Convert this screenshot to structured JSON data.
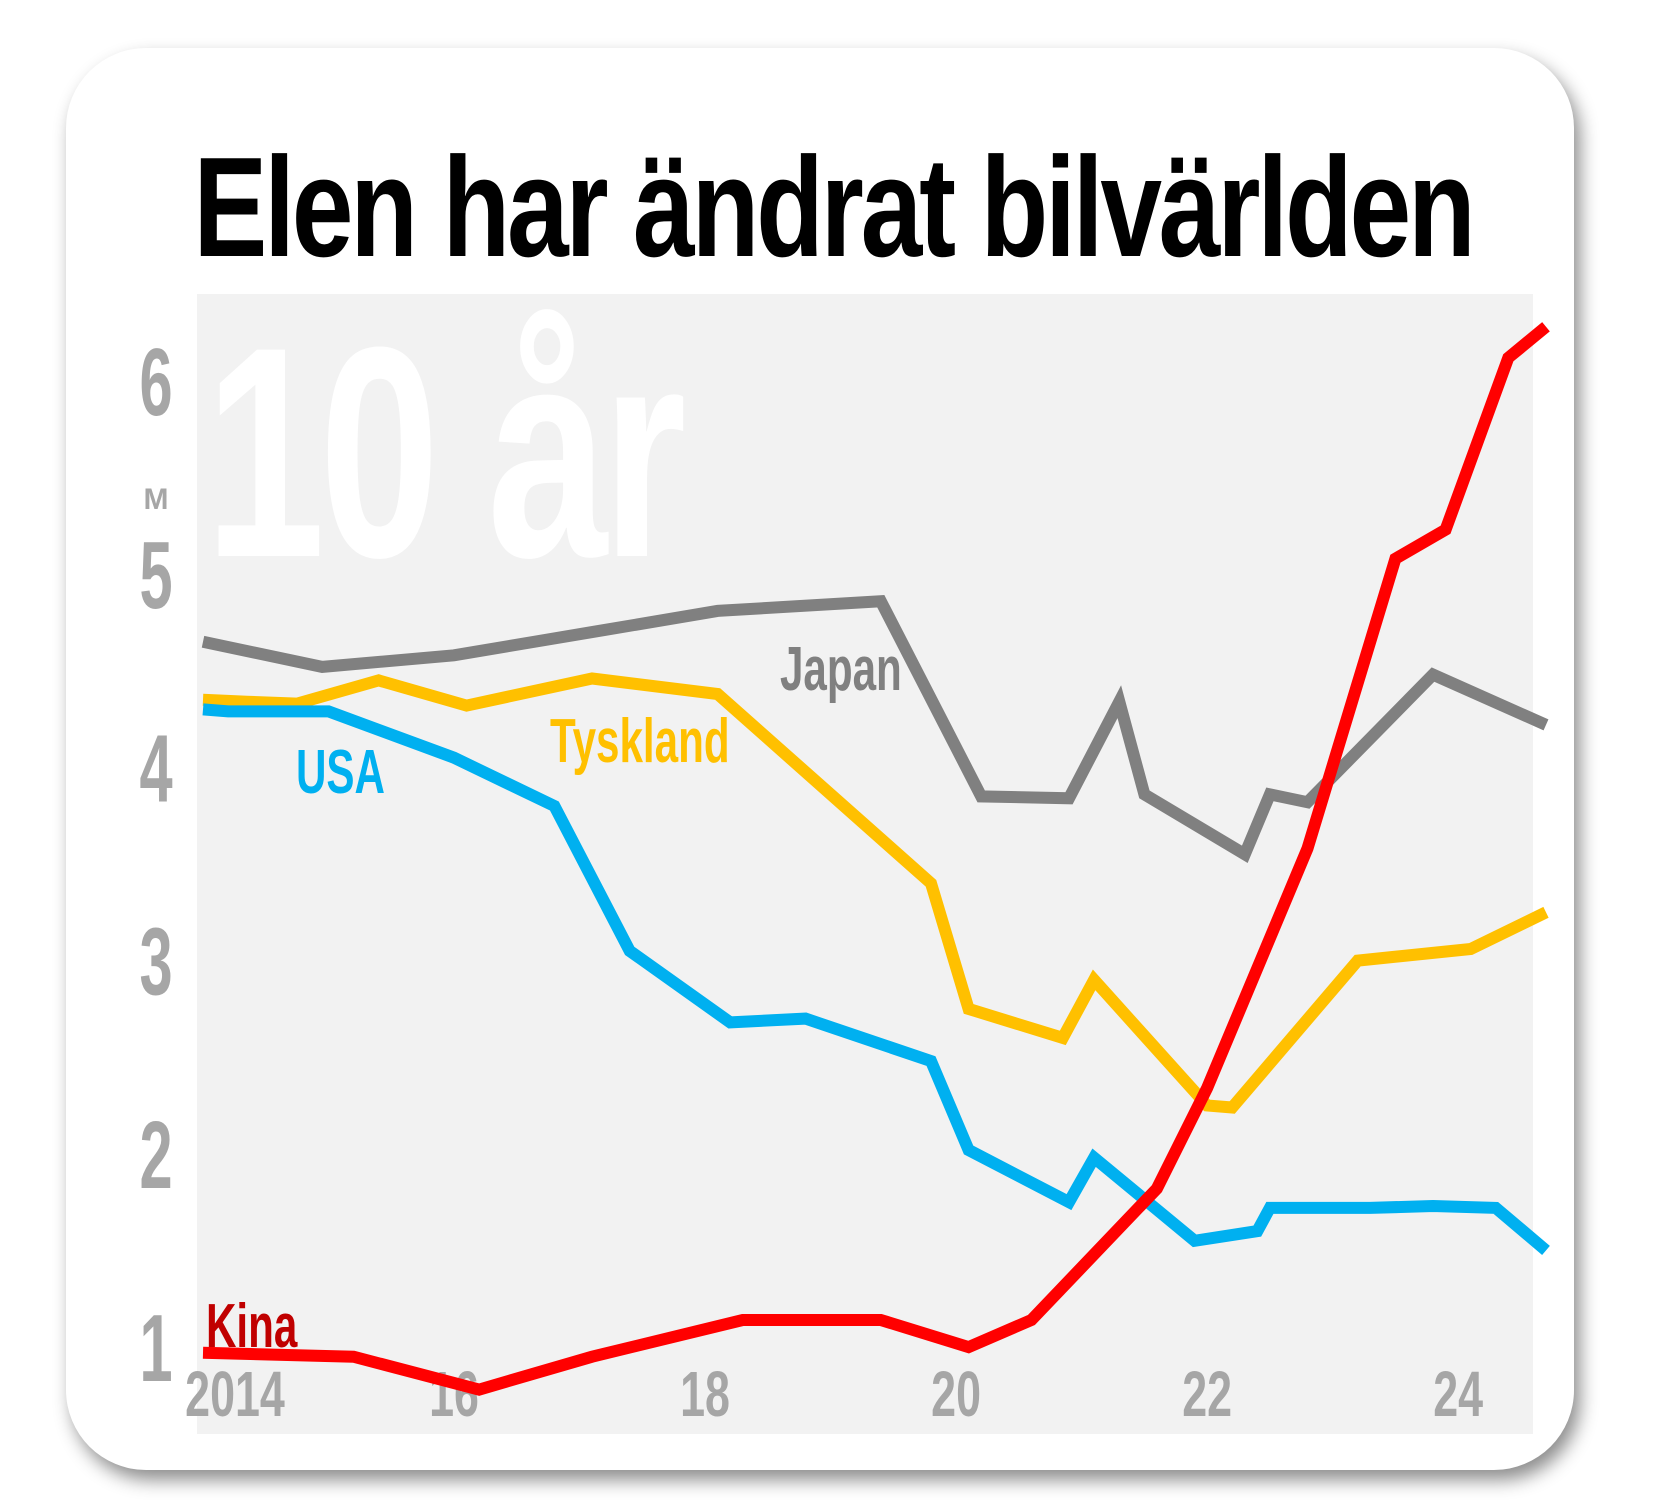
{
  "chart_data": {
    "type": "line",
    "title": "Elen har ändrat bilvärlden",
    "watermark": "10 år",
    "ylabel": "M",
    "yticks": [
      1,
      2,
      3,
      4,
      5,
      6
    ],
    "ylim": [
      0.55,
      6.45
    ],
    "xlim": [
      2014,
      2024.7
    ],
    "xticks": [
      {
        "value": 2014,
        "label": "2014"
      },
      {
        "value": 2016,
        "label": "16"
      },
      {
        "value": 2018,
        "label": "18"
      },
      {
        "value": 2020,
        "label": "20"
      },
      {
        "value": 2022,
        "label": "22"
      },
      {
        "value": 2024,
        "label": "24"
      }
    ],
    "colors": {
      "Japan": "#808080",
      "Tyskland": "#ffc000",
      "USA": "#00b0f0",
      "Kina": "#ff0000",
      "Kina_label": "#c00000",
      "axis": "#a6a6a6",
      "plot_bg": "#f2f2f2"
    },
    "series": [
      {
        "name": "Japan",
        "points": [
          [
            2014,
            4.65
          ],
          [
            2014.95,
            4.52
          ],
          [
            2016,
            4.58
          ],
          [
            2017.1,
            4.7
          ],
          [
            2018.1,
            4.81
          ],
          [
            2019.4,
            4.86
          ],
          [
            2020.2,
            3.85
          ],
          [
            2020.9,
            3.84
          ],
          [
            2021.3,
            4.34
          ],
          [
            2021.5,
            3.86
          ],
          [
            2022.3,
            3.55
          ],
          [
            2022.5,
            3.86
          ],
          [
            2022.8,
            3.82
          ],
          [
            2023.8,
            4.48
          ],
          [
            2024.7,
            4.22
          ]
        ]
      },
      {
        "name": "Tyskland",
        "points": [
          [
            2014,
            4.35
          ],
          [
            2014.35,
            4.34
          ],
          [
            2014.75,
            4.33
          ],
          [
            2015.4,
            4.45
          ],
          [
            2016.1,
            4.32
          ],
          [
            2017.1,
            4.46
          ],
          [
            2018.1,
            4.38
          ],
          [
            2019.8,
            3.4
          ],
          [
            2020.1,
            2.75
          ],
          [
            2020.85,
            2.6
          ],
          [
            2021.1,
            2.9
          ],
          [
            2022.0,
            2.25
          ],
          [
            2022.2,
            2.24
          ],
          [
            2023.2,
            3.0
          ],
          [
            2024.1,
            3.06
          ],
          [
            2024.7,
            3.25
          ]
        ]
      },
      {
        "name": "USA",
        "points": [
          [
            2014,
            4.3
          ],
          [
            2014.2,
            4.29
          ],
          [
            2015.0,
            4.29
          ],
          [
            2016.0,
            4.05
          ],
          [
            2016.8,
            3.8
          ],
          [
            2017.4,
            3.05
          ],
          [
            2018.2,
            2.68
          ],
          [
            2018.8,
            2.7
          ],
          [
            2019.8,
            2.48
          ],
          [
            2020.1,
            2.02
          ],
          [
            2020.9,
            1.75
          ],
          [
            2021.1,
            1.98
          ],
          [
            2021.9,
            1.55
          ],
          [
            2022.4,
            1.6
          ],
          [
            2022.5,
            1.72
          ],
          [
            2023.3,
            1.72
          ],
          [
            2023.8,
            1.73
          ],
          [
            2024.3,
            1.72
          ],
          [
            2024.7,
            1.5
          ]
        ]
      },
      {
        "name": "Kina",
        "points": [
          [
            2014,
            0.97
          ],
          [
            2015.2,
            0.95
          ],
          [
            2016.2,
            0.78
          ],
          [
            2017.1,
            0.95
          ],
          [
            2018.3,
            1.14
          ],
          [
            2019.4,
            1.14
          ],
          [
            2020.1,
            1.0
          ],
          [
            2020.6,
            1.14
          ],
          [
            2021.6,
            1.82
          ],
          [
            2022.0,
            2.34
          ],
          [
            2022.8,
            3.58
          ],
          [
            2023.5,
            5.08
          ],
          [
            2023.9,
            5.23
          ],
          [
            2024.4,
            6.12
          ],
          [
            2024.7,
            6.28
          ]
        ]
      }
    ],
    "labels": [
      {
        "series": "Japan",
        "text": "Japan"
      },
      {
        "series": "Tyskland",
        "text": "Tyskland"
      },
      {
        "series": "USA",
        "text": "USA"
      },
      {
        "series": "Kina",
        "text": "Kina"
      }
    ]
  }
}
